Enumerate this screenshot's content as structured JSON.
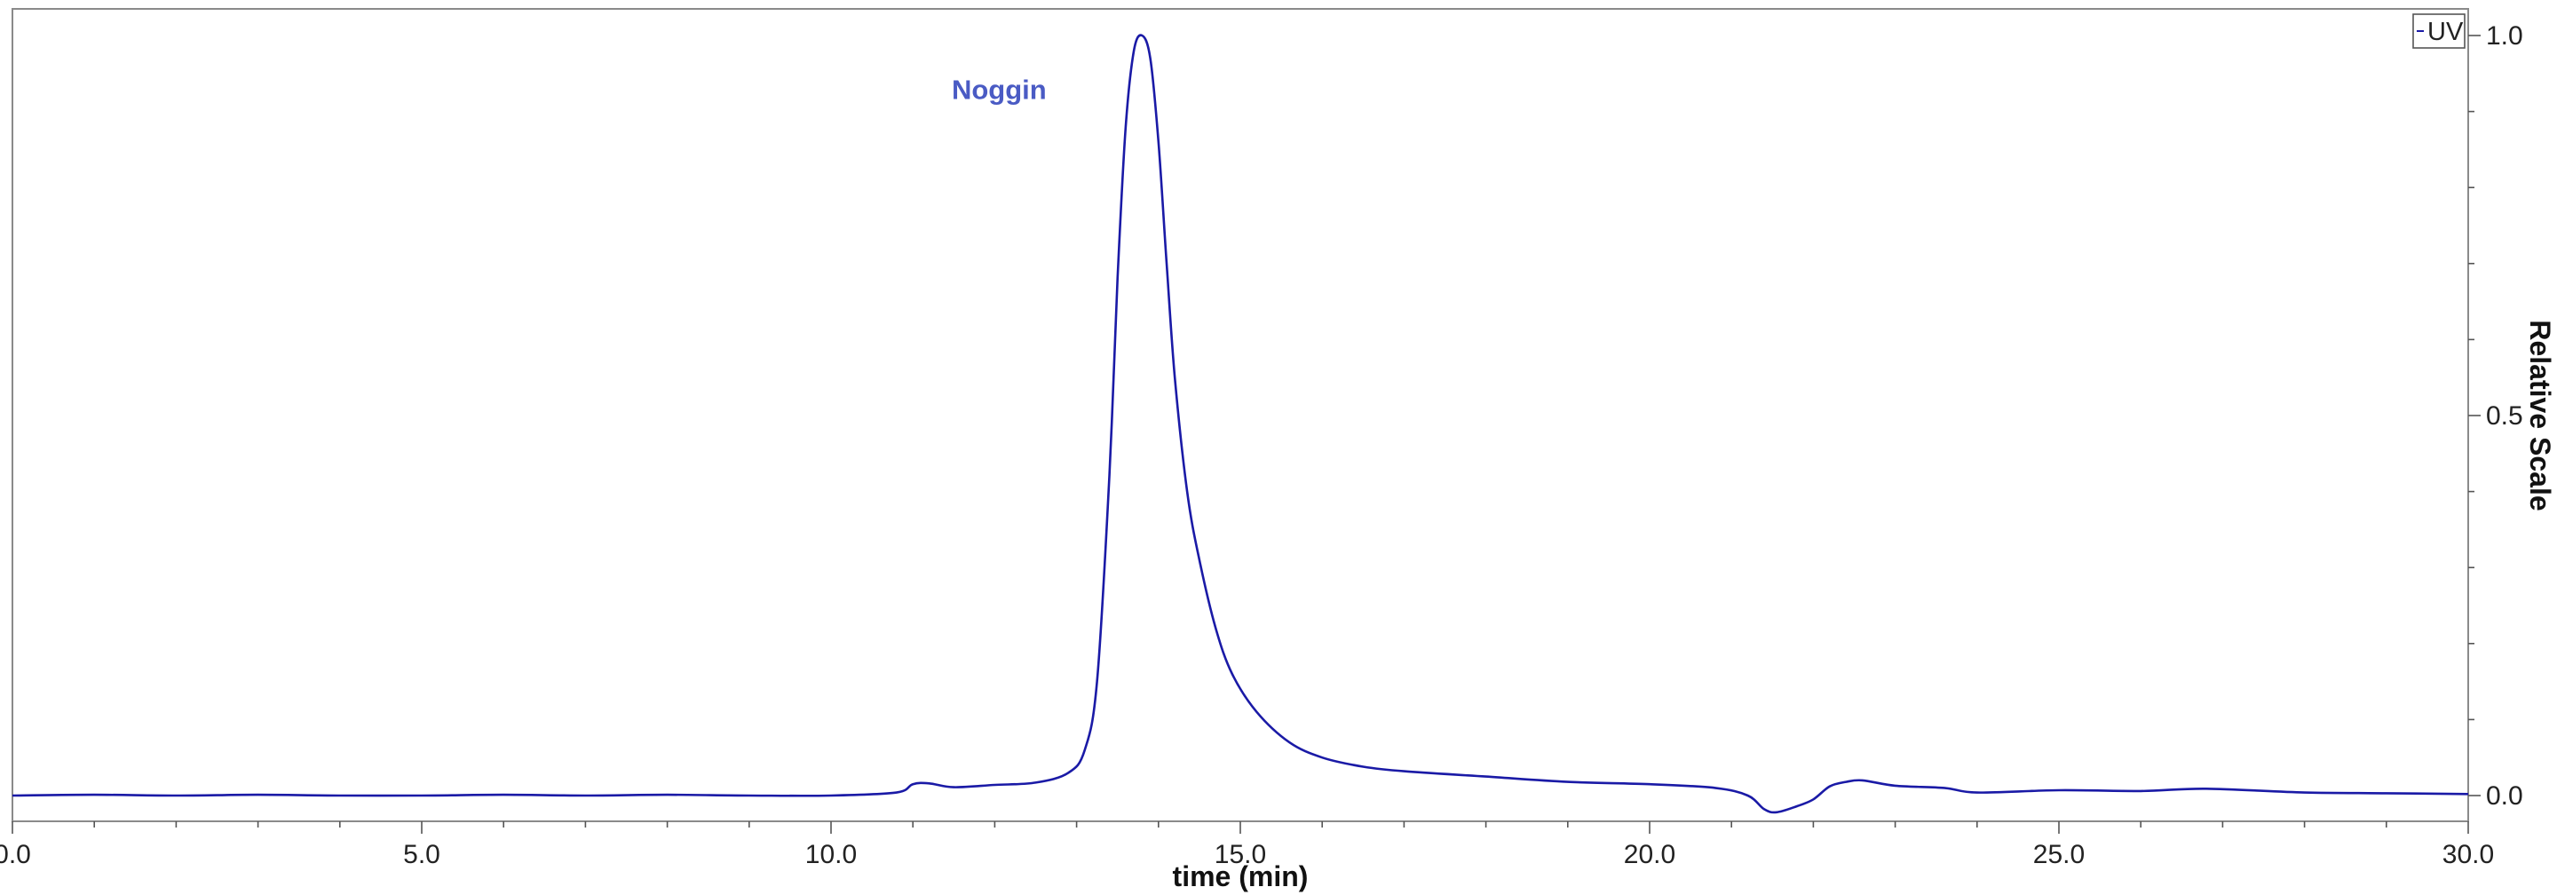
{
  "chart_data": {
    "type": "line",
    "xlabel": "time (min)",
    "ylabel": "Relative Scale",
    "xlim": [
      0,
      30
    ],
    "ylim": [
      -0.03,
      1.04
    ],
    "x_ticks": [
      "0.0",
      "5.0",
      "10.0",
      "15.0",
      "20.0",
      "25.0",
      "30.0"
    ],
    "y_ticks": [
      "0.0",
      "0.5",
      "1.0"
    ],
    "y_axis_position": "right",
    "grid": false,
    "legend": {
      "placement": "top-right",
      "entries": [
        "UV"
      ]
    },
    "series": [
      {
        "name": "UV",
        "color": "#1a1aa6",
        "x": [
          0,
          1,
          2,
          3,
          4,
          5,
          6,
          7,
          8,
          9,
          10,
          10.8,
          11.0,
          11.2,
          11.5,
          12.0,
          12.5,
          12.9,
          13.1,
          13.25,
          13.4,
          13.5,
          13.6,
          13.7,
          13.8,
          13.9,
          14.0,
          14.1,
          14.2,
          14.35,
          14.5,
          14.7,
          14.9,
          15.2,
          15.6,
          16.0,
          16.5,
          17.0,
          18.0,
          19.0,
          20.0,
          20.8,
          21.2,
          21.4,
          21.55,
          21.8,
          22.0,
          22.2,
          22.4,
          22.6,
          23.0,
          23.6,
          24.0,
          25.0,
          26.0,
          26.8,
          28.0,
          29.0,
          30.0
        ],
        "y": [
          0.0,
          0.001,
          0.0,
          0.001,
          0.0,
          0.0,
          0.001,
          0.0,
          0.001,
          0.0,
          0.0,
          0.004,
          0.015,
          0.016,
          0.011,
          0.014,
          0.017,
          0.03,
          0.06,
          0.15,
          0.42,
          0.68,
          0.88,
          0.98,
          1.0,
          0.97,
          0.86,
          0.7,
          0.55,
          0.4,
          0.31,
          0.22,
          0.16,
          0.11,
          0.07,
          0.05,
          0.038,
          0.032,
          0.025,
          0.018,
          0.015,
          0.01,
          0.0,
          -0.018,
          -0.022,
          -0.014,
          -0.005,
          0.012,
          0.018,
          0.02,
          0.013,
          0.01,
          0.004,
          0.007,
          0.006,
          0.009,
          0.004,
          0.003,
          0.002
        ]
      }
    ],
    "annotations": [
      {
        "text": "Noggin",
        "x": 11.8,
        "y": 0.94,
        "color": "#4a5bc4"
      }
    ]
  }
}
